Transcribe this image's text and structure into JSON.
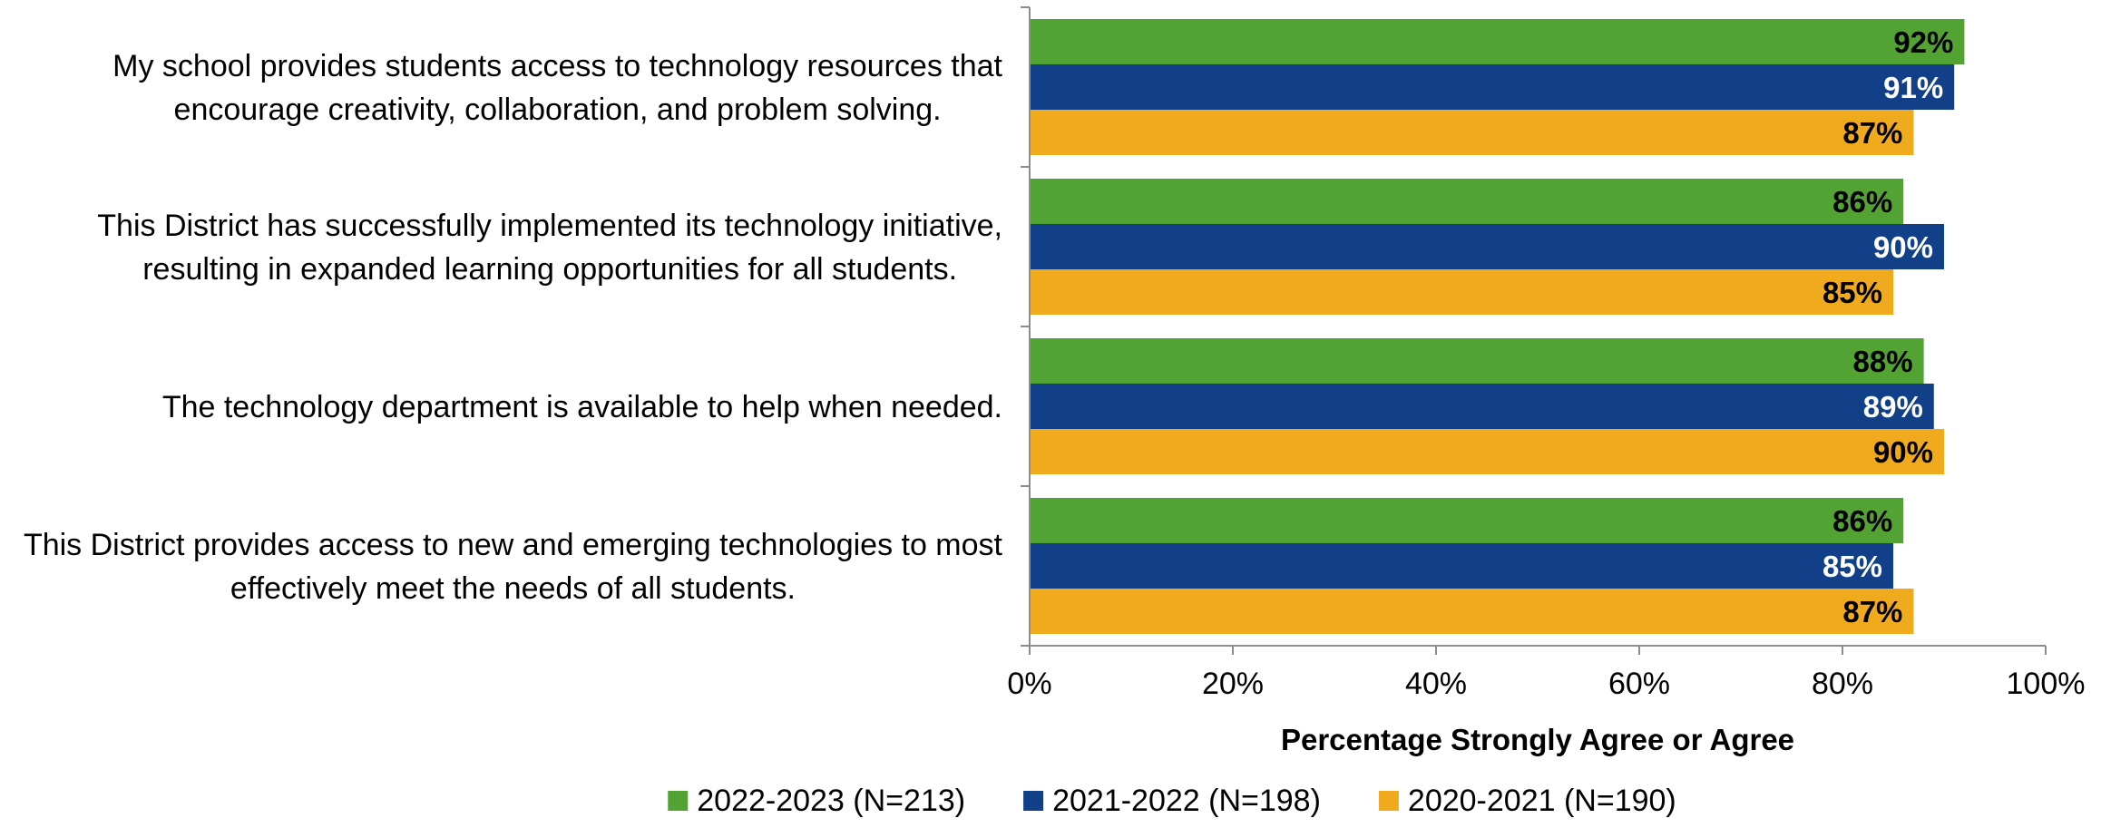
{
  "chart_data": {
    "type": "bar",
    "orientation": "horizontal",
    "categories": [
      [
        "My school provides students access to technology resources that",
        "encourage creativity, collaboration, and problem solving."
      ],
      [
        "This District has successfully implemented its technology initiative,",
        "resulting in expanded learning opportunities for all students."
      ],
      [
        "The technology department is available to help when needed."
      ],
      [
        "This District provides access to new and emerging technologies to most",
        "effectively meet the needs of all students."
      ]
    ],
    "series": [
      {
        "name": "2022-2023 (N=213)",
        "color": "#52a234",
        "label_color": "#000000",
        "values": [
          92,
          86,
          88,
          86
        ]
      },
      {
        "name": "2021-2022 (N=198)",
        "color": "#124088",
        "label_color": "#ffffff",
        "values": [
          91,
          90,
          89,
          85
        ]
      },
      {
        "name": "2020-2021 (N=190)",
        "color": "#f0aa1e",
        "label_color": "#000000",
        "values": [
          87,
          85,
          90,
          87
        ]
      }
    ],
    "xlim": [
      0,
      100
    ],
    "xticks": [
      0,
      20,
      40,
      60,
      80,
      100
    ],
    "xtick_labels": [
      "0%",
      "20%",
      "40%",
      "60%",
      "80%",
      "100%"
    ],
    "value_suffix": "%",
    "xlabel": "Percentage Strongly Agree or Agree",
    "ylabel": "",
    "title": "",
    "grid": false,
    "legend_position": "bottom"
  }
}
